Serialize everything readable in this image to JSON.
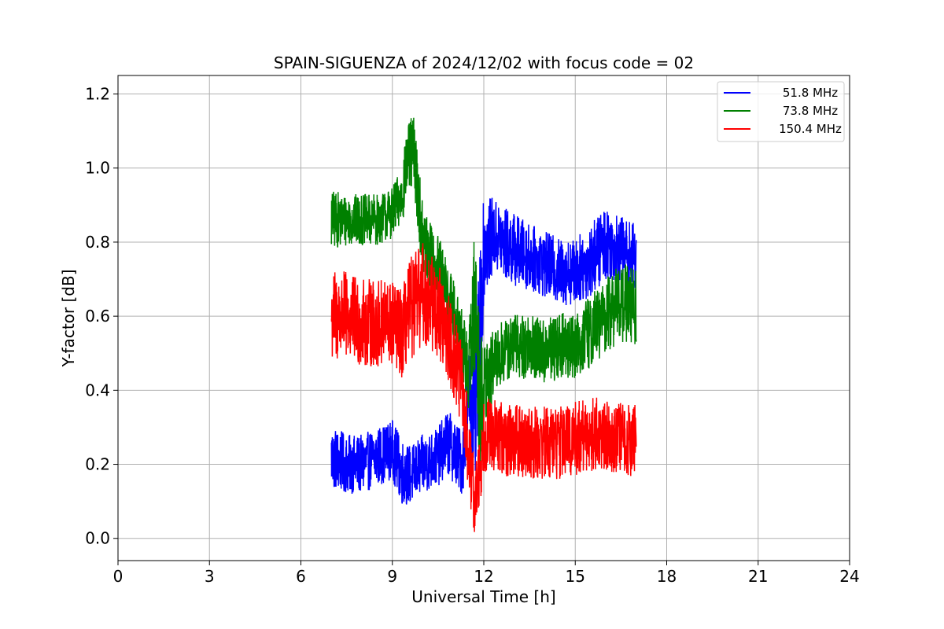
{
  "chart_data": {
    "type": "line",
    "title": "SPAIN-SIGUENZA of 2024/12/02 with focus code = 02",
    "xlabel": "Universal Time [h]",
    "ylabel": "Y-factor [dB]",
    "xlim": [
      0,
      24
    ],
    "ylim": [
      -0.06,
      1.25
    ],
    "xticks": [
      0,
      3,
      6,
      9,
      12,
      15,
      18,
      21,
      24
    ],
    "xtick_labels": [
      "0",
      "3",
      "6",
      "9",
      "12",
      "15",
      "18",
      "21",
      "24"
    ],
    "yticks": [
      0.0,
      0.2,
      0.4,
      0.6,
      0.8,
      1.0,
      1.2
    ],
    "ytick_labels": [
      "0.0",
      "0.2",
      "0.4",
      "0.6",
      "0.8",
      "1.0",
      "1.2"
    ],
    "grid": true,
    "legend_position": "top-right",
    "series": [
      {
        "name": "51.8 MHz",
        "color": "#0000ff",
        "x": [
          7.0,
          7.5,
          8.0,
          8.5,
          9.0,
          9.3,
          9.6,
          10.0,
          10.5,
          10.8,
          11.0,
          11.3,
          11.5,
          11.7,
          11.9,
          12.0,
          12.3,
          12.6,
          13.0,
          13.5,
          14.0,
          14.5,
          15.0,
          15.5,
          16.0,
          16.5,
          17.0
        ],
        "y": [
          0.22,
          0.2,
          0.2,
          0.22,
          0.24,
          0.18,
          0.17,
          0.2,
          0.22,
          0.26,
          0.24,
          0.2,
          0.4,
          0.3,
          0.6,
          0.78,
          0.82,
          0.8,
          0.78,
          0.76,
          0.74,
          0.72,
          0.72,
          0.75,
          0.8,
          0.78,
          0.76
        ],
        "spread": [
          0.09,
          0.08,
          0.08,
          0.08,
          0.08,
          0.09,
          0.08,
          0.08,
          0.08,
          0.09,
          0.09,
          0.09,
          0.12,
          0.2,
          0.22,
          0.14,
          0.1,
          0.1,
          0.1,
          0.09,
          0.09,
          0.09,
          0.09,
          0.1,
          0.1,
          0.09,
          0.09
        ]
      },
      {
        "name": "73.8 MHz",
        "color": "#008000",
        "x": [
          7.0,
          7.5,
          8.0,
          8.5,
          9.0,
          9.3,
          9.5,
          9.7,
          10.0,
          10.5,
          10.8,
          11.2,
          11.5,
          11.7,
          11.9,
          12.0,
          12.3,
          12.6,
          13.0,
          13.5,
          14.0,
          14.5,
          15.0,
          15.5,
          16.0,
          16.5,
          17.0
        ],
        "y": [
          0.86,
          0.86,
          0.86,
          0.86,
          0.88,
          0.92,
          1.02,
          1.05,
          0.8,
          0.72,
          0.66,
          0.55,
          0.45,
          0.65,
          0.35,
          0.4,
          0.46,
          0.5,
          0.52,
          0.52,
          0.5,
          0.52,
          0.52,
          0.56,
          0.6,
          0.64,
          0.62
        ],
        "spread": [
          0.08,
          0.07,
          0.07,
          0.07,
          0.07,
          0.08,
          0.1,
          0.1,
          0.1,
          0.1,
          0.1,
          0.1,
          0.1,
          0.2,
          0.25,
          0.12,
          0.1,
          0.09,
          0.09,
          0.09,
          0.09,
          0.09,
          0.09,
          0.1,
          0.1,
          0.11,
          0.11
        ]
      },
      {
        "name": "150.4 MHz",
        "color": "#ff0000",
        "x": [
          7.0,
          7.5,
          8.0,
          8.5,
          9.0,
          9.3,
          9.6,
          10.0,
          10.5,
          10.8,
          11.0,
          11.3,
          11.5,
          11.7,
          11.9,
          12.0,
          12.3,
          12.6,
          13.0,
          13.5,
          14.0,
          14.5,
          15.0,
          15.5,
          16.0,
          16.5,
          17.0
        ],
        "y": [
          0.6,
          0.6,
          0.58,
          0.58,
          0.58,
          0.55,
          0.62,
          0.66,
          0.62,
          0.55,
          0.5,
          0.4,
          0.22,
          0.1,
          0.2,
          0.28,
          0.28,
          0.27,
          0.26,
          0.26,
          0.26,
          0.26,
          0.27,
          0.28,
          0.28,
          0.27,
          0.26
        ],
        "spread": [
          0.13,
          0.12,
          0.12,
          0.12,
          0.12,
          0.12,
          0.14,
          0.14,
          0.13,
          0.12,
          0.12,
          0.12,
          0.12,
          0.1,
          0.1,
          0.1,
          0.1,
          0.1,
          0.1,
          0.1,
          0.1,
          0.1,
          0.1,
          0.1,
          0.1,
          0.1,
          0.1
        ]
      }
    ]
  }
}
